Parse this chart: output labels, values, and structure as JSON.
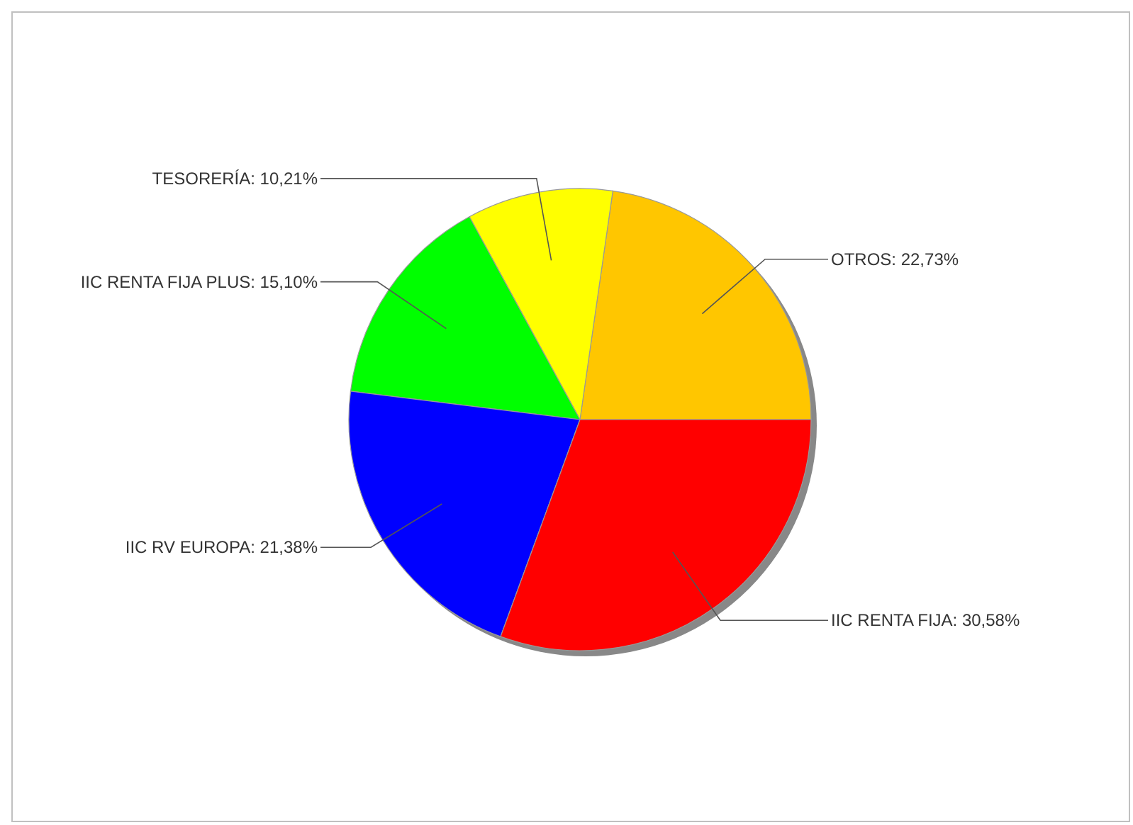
{
  "chart_data": {
    "type": "pie",
    "categories": [
      "OTROS",
      "TESORERÍA",
      "IIC RENTA FIJA PLUS",
      "IIC RV EUROPA",
      "IIC RENTA FIJA"
    ],
    "values": [
      22.73,
      10.21,
      15.1,
      21.38,
      30.58
    ],
    "colors": [
      "#ffc600",
      "#ffff00",
      "#00ff00",
      "#0000ff",
      "#ff0000"
    ],
    "value_labels": [
      "22,73%",
      "10,21%",
      "15,10%",
      "21,38%",
      "30,58%"
    ]
  }
}
